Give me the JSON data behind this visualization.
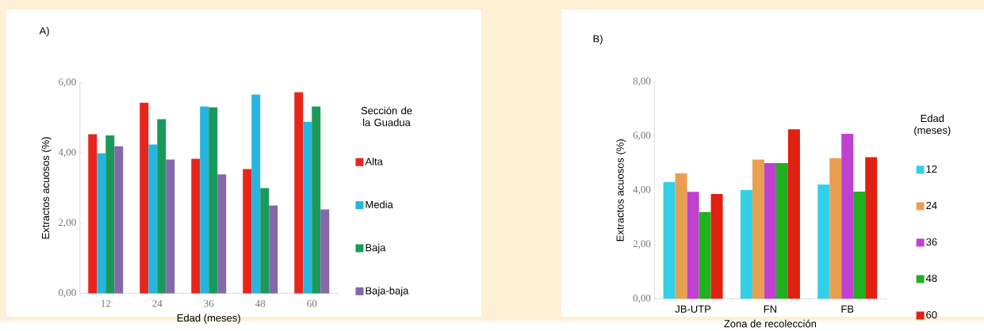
{
  "chart_data": [
    {
      "type": "bar",
      "title": "A)",
      "xlabel": "Edad (meses)",
      "ylabel": "Extractos acuosos (%)",
      "legend_title": "Sección de la Guadua",
      "legend": "right",
      "categories": [
        "12",
        "24",
        "36",
        "48",
        "60"
      ],
      "series": [
        {
          "name": "Alta",
          "color": "#e8251a",
          "values": [
            4.53,
            5.43,
            3.83,
            3.54,
            5.73
          ]
        },
        {
          "name": "Media",
          "color": "#26b5e0",
          "values": [
            3.99,
            4.24,
            5.32,
            5.66,
            4.89
          ]
        },
        {
          "name": "Baja",
          "color": "#1a9a5a",
          "values": [
            4.5,
            4.96,
            5.3,
            3.0,
            5.32
          ]
        },
        {
          "name": "Baja-baja",
          "color": "#8468a8",
          "values": [
            4.19,
            3.81,
            3.39,
            2.5,
            2.39
          ]
        }
      ],
      "ylim": [
        0,
        6
      ],
      "yticks": [
        {
          "value": 0,
          "label": "0,00"
        },
        {
          "value": 2,
          "label": "2,00"
        },
        {
          "value": 4,
          "label": "4,00"
        },
        {
          "value": 6,
          "label": "6,00"
        }
      ]
    },
    {
      "type": "bar",
      "title": "B)",
      "xlabel": "Zona de recolección",
      "ylabel": "Extractos acuosos (%)",
      "legend_title": "Edad (meses)",
      "legend": "right",
      "categories": [
        "JB-UTP",
        "FN",
        "FB"
      ],
      "series": [
        {
          "name": "12",
          "color": "#33d0e8",
          "values": [
            4.3,
            4.01,
            4.21
          ]
        },
        {
          "name": "24",
          "color": "#e8a050",
          "values": [
            4.62,
            5.13,
            5.18
          ]
        },
        {
          "name": "36",
          "color": "#c040d0",
          "values": [
            3.94,
            5.0,
            6.08
          ]
        },
        {
          "name": "48",
          "color": "#20b020",
          "values": [
            3.2,
            5.0,
            3.95
          ]
        },
        {
          "name": "60",
          "color": "#e02010",
          "values": [
            3.86,
            6.25,
            5.22
          ]
        }
      ],
      "ylim": [
        0,
        8
      ],
      "yticks": [
        {
          "value": 0,
          "label": "0,00"
        },
        {
          "value": 2,
          "label": "2,00"
        },
        {
          "value": 4,
          "label": "4,00"
        },
        {
          "value": 6,
          "label": "6,00"
        },
        {
          "value": 8,
          "label": "8,00"
        }
      ]
    }
  ]
}
